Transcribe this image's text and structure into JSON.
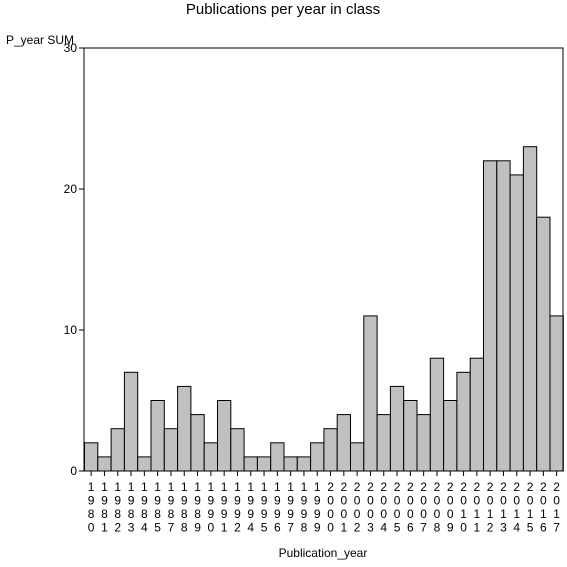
{
  "chart_data": {
    "type": "bar",
    "title": "Publications per year in class",
    "xlabel": "Publication_year",
    "ylabel": "P_year SUM",
    "ylim": [
      0,
      30
    ],
    "yticks": [
      0,
      10,
      20,
      30
    ],
    "grid": false,
    "legend": "none",
    "bar_color": "#c0c0c0",
    "edge_color": "#000000",
    "categories": [
      "1980",
      "1981",
      "1982",
      "1983",
      "1984",
      "1985",
      "1987",
      "1988",
      "1989",
      "1990",
      "1991",
      "1992",
      "1994",
      "1995",
      "1996",
      "1997",
      "1998",
      "1999",
      "2000",
      "2001",
      "2002",
      "2003",
      "2004",
      "2005",
      "2006",
      "2007",
      "2008",
      "2009",
      "2010",
      "2011",
      "2012",
      "2013",
      "2014",
      "2015",
      "2016",
      "2017"
    ],
    "values": [
      2,
      1,
      3,
      7,
      1,
      5,
      3,
      6,
      4,
      2,
      5,
      3,
      1,
      1,
      2,
      1,
      1,
      2,
      3,
      4,
      2,
      11,
      4,
      6,
      5,
      4,
      8,
      5,
      7,
      8,
      22,
      22,
      21,
      23,
      18,
      11
    ]
  }
}
